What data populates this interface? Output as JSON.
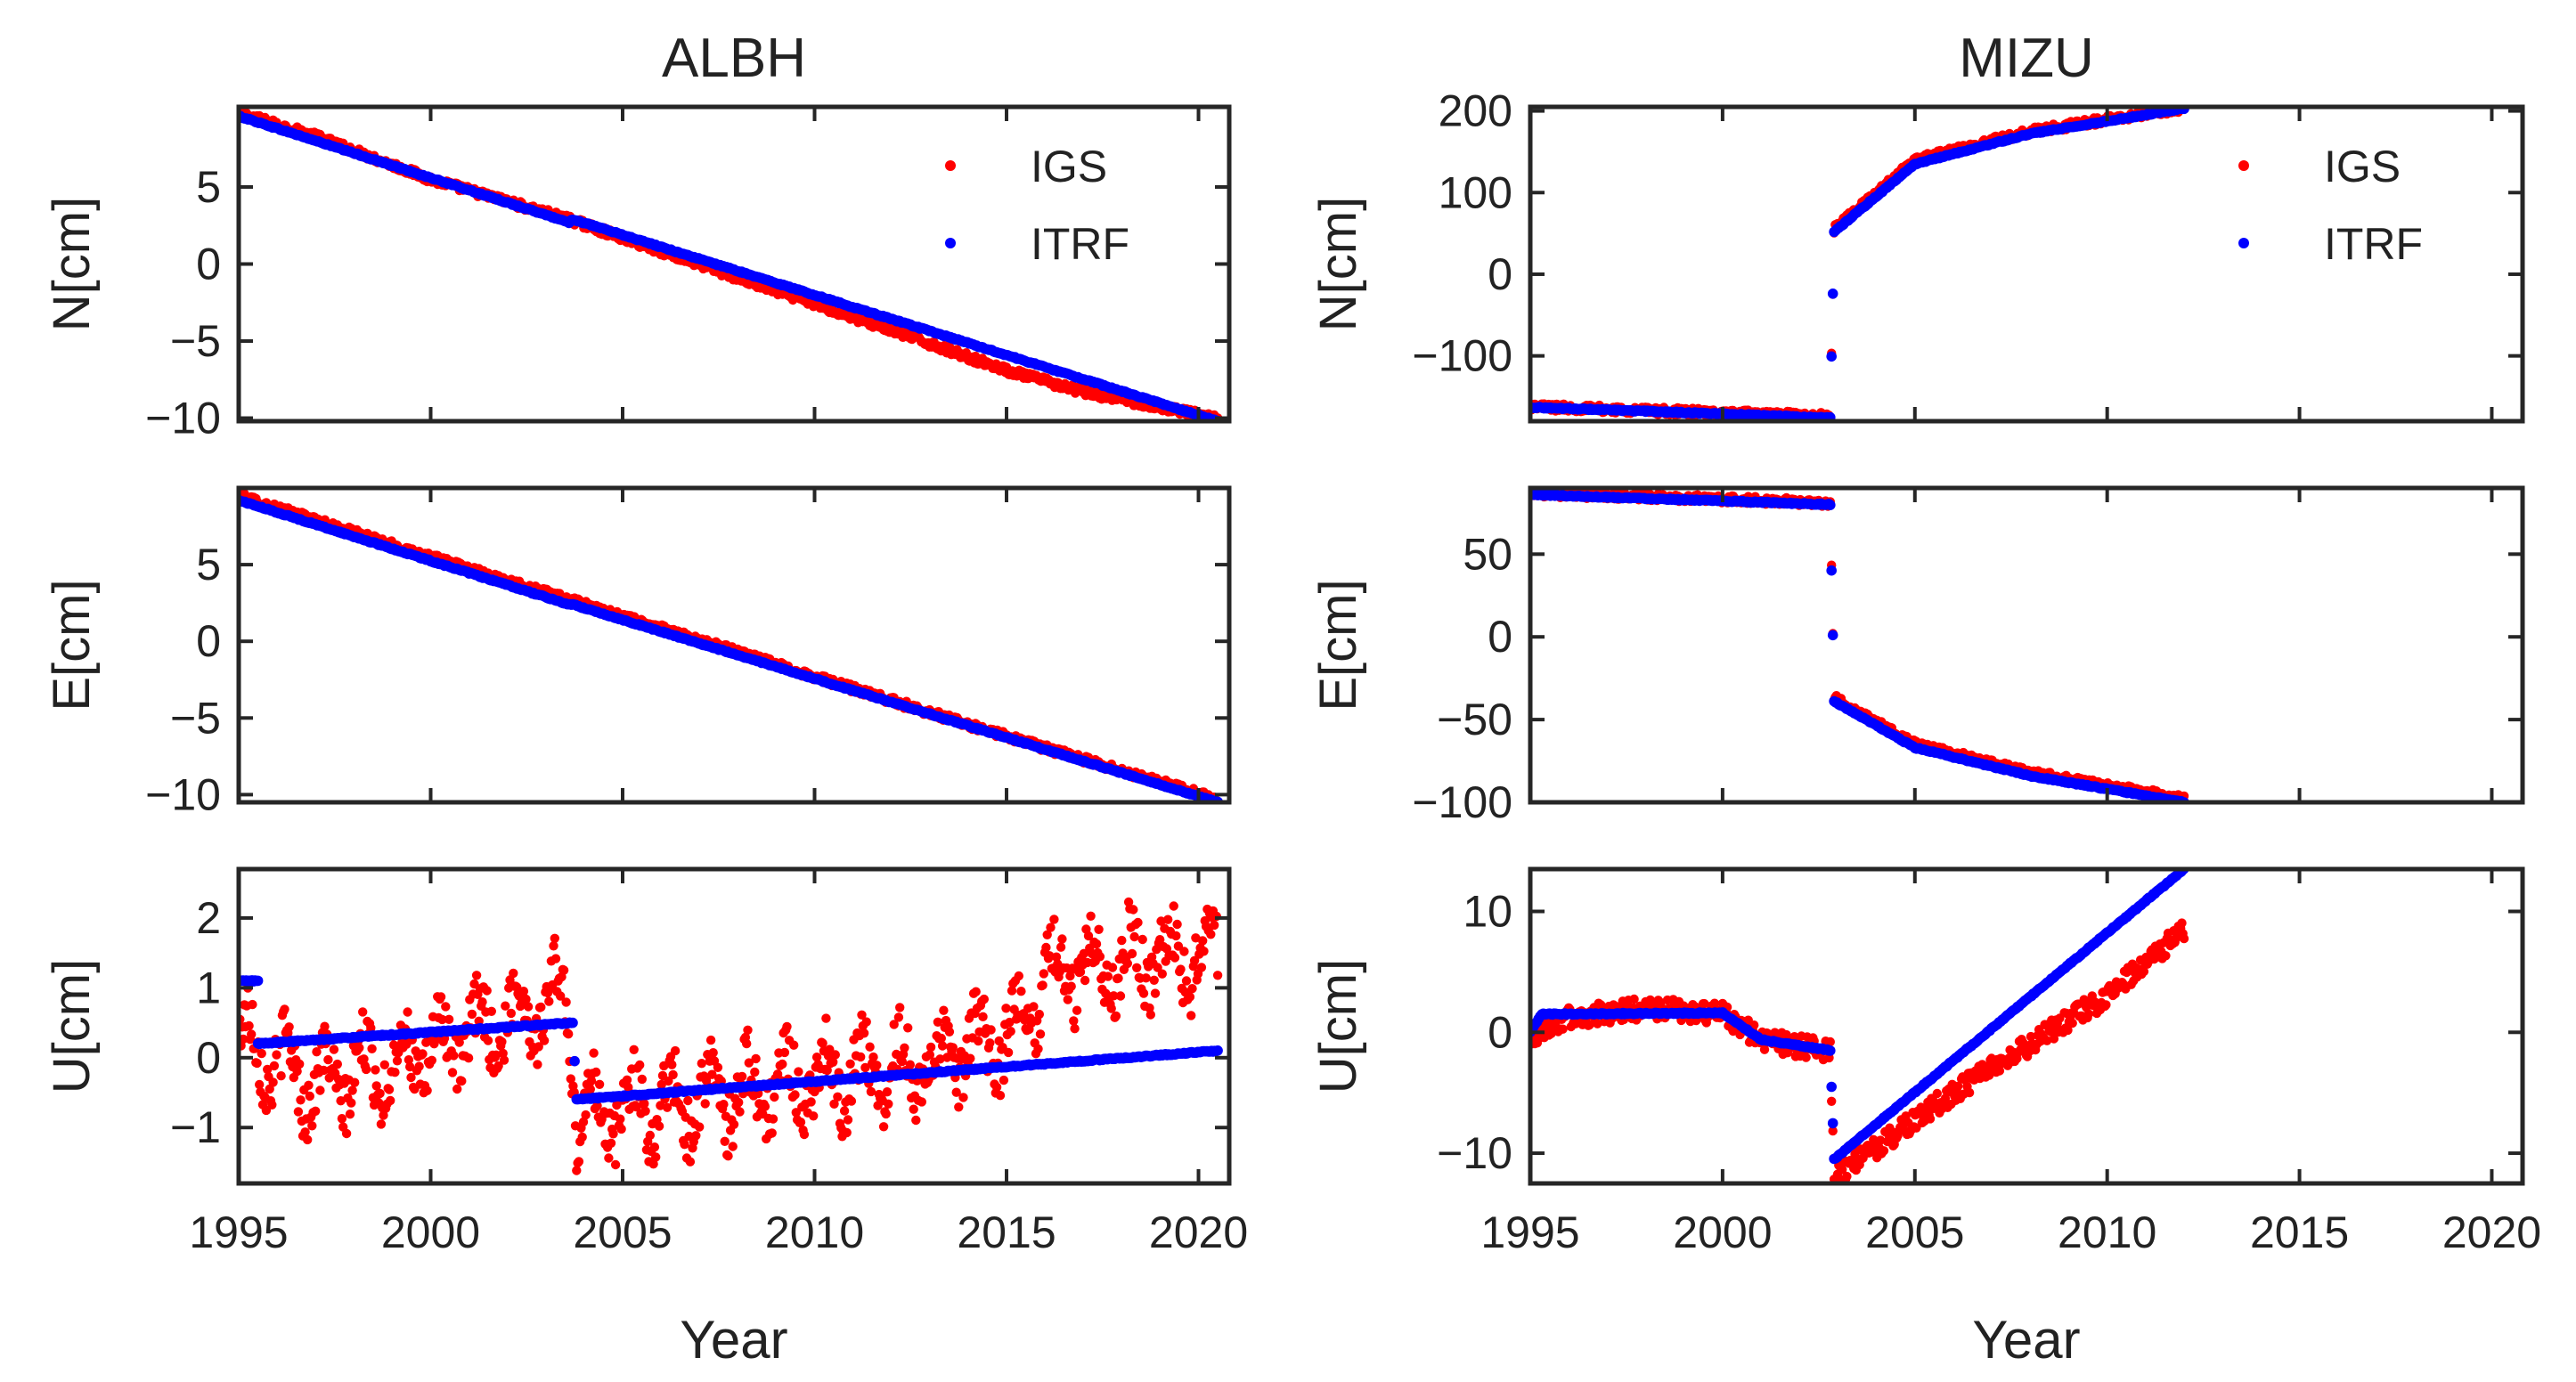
{
  "figure": {
    "colors": {
      "igs": "#ff0000",
      "itrf": "#0000ff",
      "axis": "#262626"
    }
  },
  "chart_data": [
    {
      "type": "scatter",
      "title": "ALBH",
      "column": "left",
      "row": 0,
      "ylabel": "N[cm]",
      "xlabel": "",
      "xlim": [
        1995,
        2020.8
      ],
      "ylim": [
        -10.2,
        10.2
      ],
      "xticks": [
        1995,
        2000,
        2005,
        2010,
        2015,
        2020
      ],
      "yticks": [
        5,
        0,
        -5,
        -10
      ],
      "ytick_labels": [
        "5",
        "0",
        "−5",
        "−10"
      ],
      "show_xtick_labels": false,
      "legend": {
        "position": "top-right",
        "entries": [
          "IGS",
          "ITRF"
        ]
      },
      "series": [
        {
          "name": "IGS",
          "color": "#ff0000",
          "x": [
            1995.0,
            1997.0,
            2000.0,
            2003.6,
            2005.0,
            2008.0,
            2010.0,
            2012.0,
            2015.0,
            2017.0,
            2020.5
          ],
          "y": [
            9.8,
            8.3,
            5.5,
            2.9,
            1.7,
            -0.9,
            -2.6,
            -4.3,
            -6.9,
            -8.3,
            -10.0
          ]
        },
        {
          "name": "ITRF",
          "color": "#0000ff",
          "x": [
            1995.0,
            2003.6,
            2003.7,
            2020.5
          ],
          "y": [
            9.6,
            2.7,
            2.9,
            -10.2
          ]
        }
      ]
    },
    {
      "type": "scatter",
      "column": "left",
      "row": 1,
      "ylabel": "E[cm]",
      "xlabel": "",
      "xlim": [
        1995,
        2020.8
      ],
      "ylim": [
        -10.5,
        10.0
      ],
      "xticks": [
        1995,
        2000,
        2005,
        2010,
        2015,
        2020
      ],
      "yticks": [
        5,
        0,
        -5,
        -10
      ],
      "ytick_labels": [
        "5",
        "0",
        "−5",
        "−10"
      ],
      "show_xtick_labels": false,
      "series": [
        {
          "name": "IGS",
          "color": "#ff0000",
          "x": [
            1995.0,
            2000.0,
            2003.6,
            2008.0,
            2010.0,
            2015.0,
            2020.5
          ],
          "y": [
            9.5,
            5.5,
            2.7,
            -0.7,
            -2.3,
            -6.2,
            -10.3
          ]
        },
        {
          "name": "ITRF",
          "color": "#0000ff",
          "x": [
            1995.0,
            2003.6,
            2003.7,
            2020.5
          ],
          "y": [
            9.2,
            2.4,
            2.4,
            -10.5
          ]
        }
      ]
    },
    {
      "type": "scatter",
      "column": "left",
      "row": 2,
      "ylabel": "U[cm]",
      "xlabel": "Year",
      "xlim": [
        1995,
        2020.8
      ],
      "ylim": [
        -1.8,
        2.7
      ],
      "xticks": [
        1995,
        2000,
        2005,
        2010,
        2015,
        2020
      ],
      "xtick_labels": [
        "1995",
        "2000",
        "2005",
        "2010",
        "2015",
        "2020"
      ],
      "yticks": [
        2,
        1,
        0,
        -1
      ],
      "ytick_labels": [
        "2",
        "1",
        "0",
        "−1"
      ],
      "show_xtick_labels": true,
      "series": [
        {
          "name": "IGS",
          "color": "#ff0000",
          "x": [
            1995.0,
            1997.0,
            2000.0,
            2003.5,
            2003.8,
            2007.0,
            2010.0,
            2013.0,
            2015.5,
            2016.0,
            2018.0,
            2020.5
          ],
          "y": [
            0.3,
            -0.4,
            0.1,
            0.9,
            -0.8,
            -0.6,
            -0.3,
            -0.1,
            0.4,
            1.2,
            1.4,
            1.5
          ]
        },
        {
          "name": "ITRF",
          "color": "#0000ff",
          "x": [
            1995.0,
            1995.5,
            1995.5,
            2003.7,
            2003.8,
            2020.5
          ],
          "y": [
            1.1,
            1.1,
            0.2,
            0.5,
            -0.6,
            0.1
          ]
        }
      ]
    },
    {
      "type": "scatter",
      "title": "MIZU",
      "column": "right",
      "row": 0,
      "ylabel": "N[cm]",
      "xlabel": "",
      "xlim": [
        1995,
        2020.8
      ],
      "ylim": [
        -180,
        205
      ],
      "xticks": [
        1995,
        2000,
        2005,
        2010,
        2015,
        2020
      ],
      "yticks": [
        200,
        100,
        0,
        -100
      ],
      "ytick_labels": [
        "200",
        "100",
        "0",
        "−100"
      ],
      "show_xtick_labels": false,
      "legend": {
        "position": "top-right",
        "entries": [
          "IGS",
          "ITRF"
        ]
      },
      "series": [
        {
          "name": "IGS",
          "color": "#ff0000",
          "x": [
            1995.0,
            2000.0,
            2002.8,
            2002.9,
            2005.0,
            2008.0,
            2012.0
          ],
          "y": [
            -162,
            -170,
            -174,
            55,
            140,
            175,
            204
          ]
        },
        {
          "name": "ITRF",
          "color": "#0000ff",
          "x": [
            1995.0,
            2000.0,
            2002.8,
            2002.9,
            2005.0,
            2008.0,
            2012.0
          ],
          "y": [
            -163,
            -171,
            -176,
            52,
            135,
            172,
            203
          ]
        }
      ]
    },
    {
      "type": "scatter",
      "column": "right",
      "row": 1,
      "ylabel": "E[cm]",
      "xlabel": "",
      "xlim": [
        1995,
        2020.8
      ],
      "ylim": [
        -100,
        90
      ],
      "xticks": [
        1995,
        2000,
        2005,
        2010,
        2015,
        2020
      ],
      "yticks": [
        50,
        0,
        -50,
        -100
      ],
      "ytick_labels": [
        "50",
        "0",
        "−50",
        "−100"
      ],
      "show_xtick_labels": false,
      "series": [
        {
          "name": "IGS",
          "color": "#ff0000",
          "x": [
            1995.0,
            2002.8,
            2002.9,
            2005.0,
            2008.0,
            2012.0
          ],
          "y": [
            87,
            81,
            -37,
            -65,
            -82,
            -98
          ]
        },
        {
          "name": "ITRF",
          "color": "#0000ff",
          "x": [
            1995.0,
            2002.8,
            2002.9,
            2005.0,
            2008.0,
            2012.0
          ],
          "y": [
            86,
            80,
            -39,
            -67,
            -84,
            -100
          ]
        }
      ]
    },
    {
      "type": "scatter",
      "column": "right",
      "row": 2,
      "ylabel": "U[cm]",
      "xlabel": "Year",
      "xlim": [
        1995,
        2020.8
      ],
      "ylim": [
        -12.5,
        13.5
      ],
      "xticks": [
        1995,
        2000,
        2005,
        2010,
        2015,
        2020
      ],
      "xtick_labels": [
        "1995",
        "2000",
        "2005",
        "2010",
        "2015",
        "2020"
      ],
      "yticks": [
        10,
        0,
        -10
      ],
      "ytick_labels": [
        "10",
        "0",
        "−10"
      ],
      "show_xtick_labels": true,
      "series": [
        {
          "name": "IGS",
          "color": "#ff0000",
          "x": [
            1995.0,
            1996.0,
            1998.0,
            2000.0,
            2001.0,
            2002.8,
            2002.9,
            2006.0,
            2010.0,
            2012.0
          ],
          "y": [
            -0.5,
            1.2,
            2.0,
            1.5,
            -0.6,
            -1.6,
            -12.0,
            -5.0,
            3.0,
            8.5
          ]
        },
        {
          "name": "ITRF",
          "color": "#0000ff",
          "x": [
            1995.0,
            1995.3,
            2000.0,
            2001.0,
            2002.8,
            2002.9,
            2012.0
          ],
          "y": [
            0.0,
            1.5,
            1.6,
            -0.6,
            -1.5,
            -10.5,
            13.5
          ]
        }
      ]
    }
  ]
}
